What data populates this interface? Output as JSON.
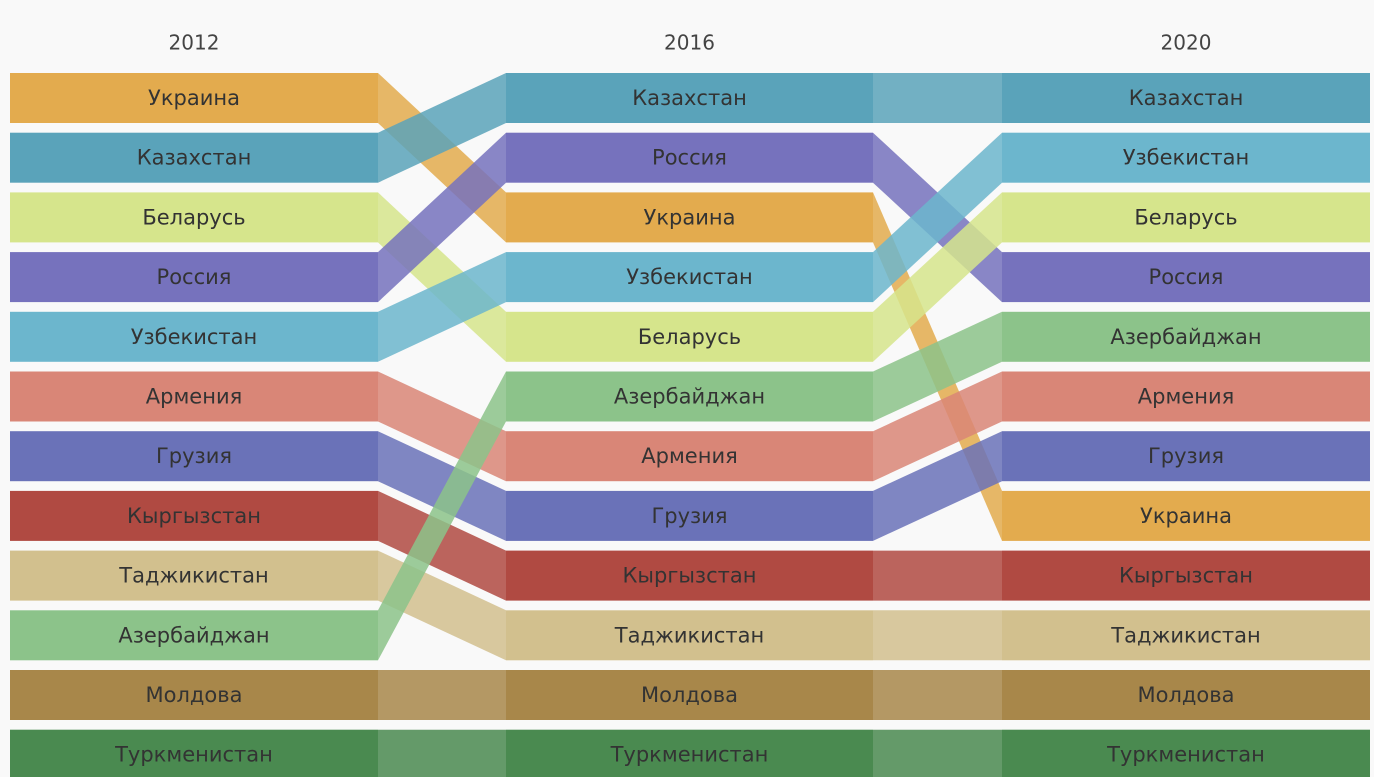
{
  "columns": [
    {
      "year": "2012",
      "items": [
        {
          "label": "Украина",
          "color": "#e3ab4e"
        },
        {
          "label": "Казахстан",
          "color": "#5aa3ba"
        },
        {
          "label": "Беларусь",
          "color": "#d6e58c"
        },
        {
          "label": "Россия",
          "color": "#7672bd"
        },
        {
          "label": "Узбекистан",
          "color": "#6cb6cd"
        },
        {
          "label": "Армения",
          "color": "#d98677"
        },
        {
          "label": "Грузия",
          "color": "#6a72b8"
        },
        {
          "label": "Кыргызстан",
          "color": "#b04a42"
        },
        {
          "label": "Таджикистан",
          "color": "#d2c08e"
        },
        {
          "label": "Азербайджан",
          "color": "#8cc38a"
        },
        {
          "label": "Молдова",
          "color": "#a8874a"
        },
        {
          "label": "Туркменистан",
          "color": "#4a8a50"
        }
      ]
    },
    {
      "year": "2016",
      "items": [
        {
          "label": "Казахстан",
          "color": "#5aa3ba"
        },
        {
          "label": "Россия",
          "color": "#7672bd"
        },
        {
          "label": "Украина",
          "color": "#e3ab4e"
        },
        {
          "label": "Узбекистан",
          "color": "#6cb6cd"
        },
        {
          "label": "Беларусь",
          "color": "#d6e58c"
        },
        {
          "label": "Азербайджан",
          "color": "#8cc38a"
        },
        {
          "label": "Армения",
          "color": "#d98677"
        },
        {
          "label": "Грузия",
          "color": "#6a72b8"
        },
        {
          "label": "Кыргызстан",
          "color": "#b04a42"
        },
        {
          "label": "Таджикистан",
          "color": "#d2c08e"
        },
        {
          "label": "Молдова",
          "color": "#a8874a"
        },
        {
          "label": "Туркменистан",
          "color": "#4a8a50"
        }
      ]
    },
    {
      "year": "2020",
      "items": [
        {
          "label": "Казахстан",
          "color": "#5aa3ba"
        },
        {
          "label": "Узбекистан",
          "color": "#6cb6cd"
        },
        {
          "label": "Беларусь",
          "color": "#d6e58c"
        },
        {
          "label": "Россия",
          "color": "#7672bd"
        },
        {
          "label": "Азербайджан",
          "color": "#8cc38a"
        },
        {
          "label": "Армения",
          "color": "#d98677"
        },
        {
          "label": "Грузия",
          "color": "#6a72b8"
        },
        {
          "label": "Украина",
          "color": "#e3ab4e"
        },
        {
          "label": "Кыргызстан",
          "color": "#b04a42"
        },
        {
          "label": "Таджикистан",
          "color": "#d2c08e"
        },
        {
          "label": "Молдова",
          "color": "#a8874a"
        },
        {
          "label": "Туркменистан",
          "color": "#4a8a50"
        }
      ]
    }
  ]
}
